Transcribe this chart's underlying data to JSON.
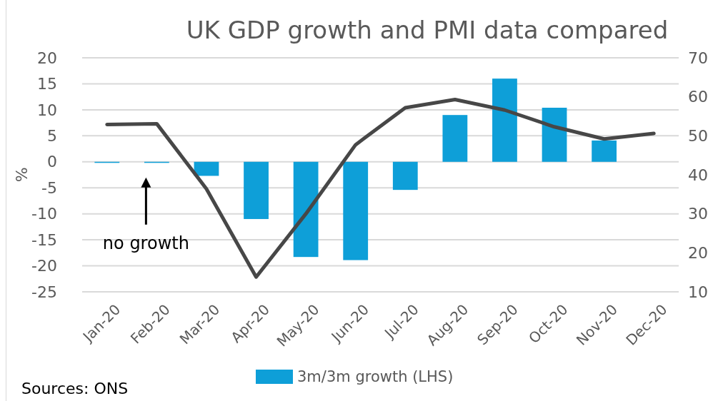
{
  "chart_data": {
    "type": "bar",
    "title": "UK GDP growth and PMI data compared",
    "ylabel": "%",
    "categories": [
      "Jan-20",
      "Feb-20",
      "Mar-20",
      "Apr-20",
      "May-20",
      "Jun-20",
      "Jul-20",
      "Aug-20",
      "Sep-20",
      "Oct-20",
      "Nov-20",
      "Dec-20"
    ],
    "series": [
      {
        "name": "3m/3m growth (LHS)",
        "color": "#0e9fd8",
        "values": [
          -0.1,
          -0.2,
          -2.7,
          -11.0,
          -18.3,
          -18.9,
          -5.4,
          9.0,
          16.0,
          10.4,
          4.1,
          null
        ]
      },
      {
        "type": "line",
        "axis": "y2",
        "color": "#474747",
        "values": [
          52.9,
          53.1,
          36.4,
          13.8,
          30.0,
          47.7,
          57.2,
          59.3,
          56.6,
          52.3,
          49.2,
          50.6
        ]
      }
    ],
    "ylim": [
      -25,
      20
    ],
    "yticks": [
      -25,
      -20,
      -15,
      -10,
      -5,
      0,
      5,
      10,
      15,
      20
    ],
    "y2lim": [
      10,
      70
    ],
    "y2ticks": [
      10,
      20,
      30,
      40,
      50,
      60,
      70
    ],
    "grid": "y",
    "legend": "bottom",
    "marker": "none",
    "line_style": "solid",
    "annotations": [
      "no growth",
      "Sources: ONS"
    ]
  }
}
